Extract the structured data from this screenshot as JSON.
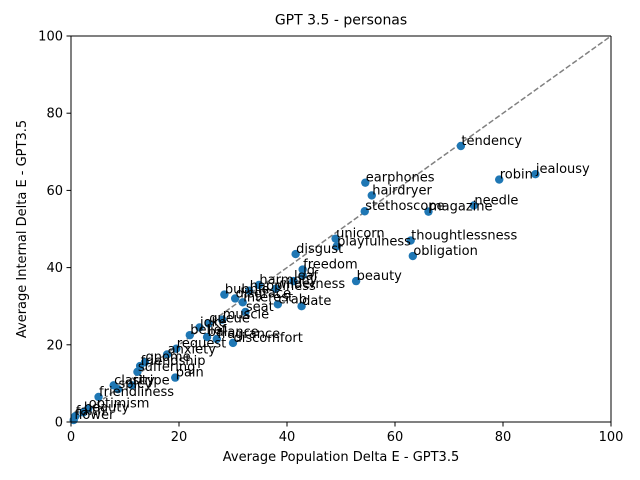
{
  "chart_data": {
    "type": "scatter",
    "title": "GPT 3.5 - personas",
    "xlabel": "Average Population Delta E - GPT3.5",
    "ylabel": "Average Internal Delta E - GPT3.5",
    "xlim": [
      0,
      100
    ],
    "ylim": [
      0,
      100
    ],
    "xticks": [
      0,
      20,
      40,
      60,
      80,
      100
    ],
    "yticks": [
      0,
      20,
      40,
      60,
      80,
      100
    ],
    "grid": false,
    "point_color": "#1f77b4",
    "reference_line": {
      "style": "dashed",
      "color": "#808080",
      "from": [
        0,
        0
      ],
      "to": [
        100,
        100
      ]
    },
    "points": [
      {
        "label": "tendency",
        "x": 72.2,
        "y": 71.5
      },
      {
        "label": "jealousy",
        "x": 86.0,
        "y": 64.2
      },
      {
        "label": "robin",
        "x": 79.3,
        "y": 62.8
      },
      {
        "label": "earphones",
        "x": 54.5,
        "y": 62.0
      },
      {
        "label": "hairdryer",
        "x": 55.7,
        "y": 58.7
      },
      {
        "label": "needle",
        "x": 74.6,
        "y": 56.1
      },
      {
        "label": "magazine",
        "x": 66.2,
        "y": 54.5
      },
      {
        "label": "stethoscope",
        "x": 54.4,
        "y": 54.6
      },
      {
        "label": "unicorn",
        "x": 49.0,
        "y": 47.5
      },
      {
        "label": "thoughtlessness",
        "x": 62.9,
        "y": 47.0
      },
      {
        "label": "playfulness",
        "x": 49.2,
        "y": 45.5
      },
      {
        "label": "disgust",
        "x": 41.6,
        "y": 43.5
      },
      {
        "label": "obligation",
        "x": 63.3,
        "y": 43.0
      },
      {
        "label": "freedom",
        "x": 42.9,
        "y": 39.5
      },
      {
        "label": "ig",
        "x": 42.9,
        "y": 38.0
      },
      {
        "label": "beauty",
        "x": 52.8,
        "y": 36.5
      },
      {
        "label": "leaf",
        "x": 41.2,
        "y": 36.5
      },
      {
        "label": "wilderness",
        "x": 37.9,
        "y": 34.5
      },
      {
        "label": "harmony",
        "x": 34.8,
        "y": 35.5
      },
      {
        "label": "happiness",
        "x": 33.0,
        "y": 34.0
      },
      {
        "label": "bubble",
        "x": 28.4,
        "y": 33.0
      },
      {
        "label": "disgrace",
        "x": 30.4,
        "y": 32.0
      },
      {
        "label": "interest",
        "x": 31.8,
        "y": 31.0
      },
      {
        "label": "date",
        "x": 42.7,
        "y": 30.0
      },
      {
        "label": "crab",
        "x": 38.3,
        "y": 30.5
      },
      {
        "label": "seat",
        "x": 32.3,
        "y": 28.5
      },
      {
        "label": "muscle",
        "x": 28.0,
        "y": 26.5
      },
      {
        "label": "queue",
        "x": 25.5,
        "y": 25.5
      },
      {
        "label": "joke",
        "x": 23.8,
        "y": 24.5
      },
      {
        "label": "belief",
        "x": 22.0,
        "y": 22.5
      },
      {
        "label": "balance",
        "x": 25.2,
        "y": 22.0
      },
      {
        "label": "fragrance",
        "x": 27.0,
        "y": 21.5
      },
      {
        "label": "discomfort",
        "x": 30.0,
        "y": 20.5
      },
      {
        "label": "request",
        "x": 19.5,
        "y": 19.0
      },
      {
        "label": "anxiety",
        "x": 17.8,
        "y": 17.5
      },
      {
        "label": "gnome",
        "x": 13.7,
        "y": 15.5
      },
      {
        "label": "friendship",
        "x": 12.8,
        "y": 14.5
      },
      {
        "label": "suffering",
        "x": 12.3,
        "y": 13.0
      },
      {
        "label": "pain",
        "x": 19.3,
        "y": 11.5
      },
      {
        "label": "clarity",
        "x": 7.9,
        "y": 9.5
      },
      {
        "label": "stripe",
        "x": 11.3,
        "y": 9.5
      },
      {
        "label": "spicy",
        "x": 8.7,
        "y": 8.5
      },
      {
        "label": "friendliness",
        "x": 5.1,
        "y": 6.5
      },
      {
        "label": "optimism",
        "x": 3.2,
        "y": 3.5
      },
      {
        "label": "beauty",
        "x": 2.3,
        "y": 2.5
      },
      {
        "label": "faith",
        "x": 0.8,
        "y": 1.5
      },
      {
        "label": "flower",
        "x": 0.5,
        "y": 0.5
      }
    ]
  }
}
